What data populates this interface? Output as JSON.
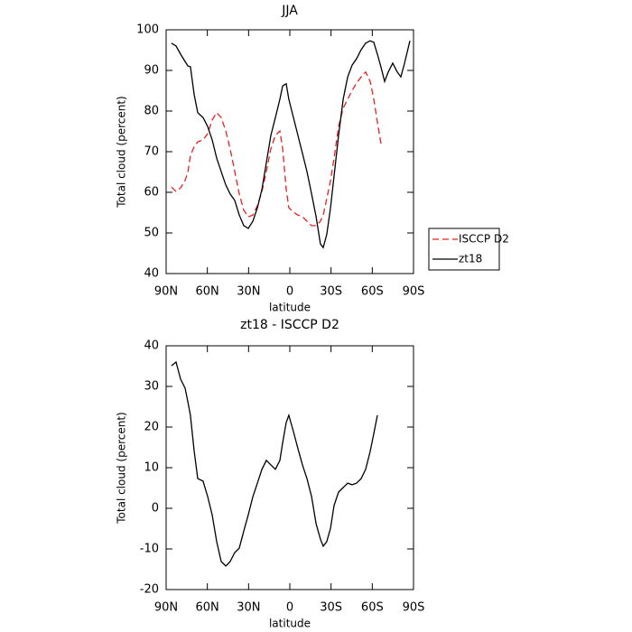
{
  "chart_data": [
    {
      "type": "line",
      "title": "JJA",
      "x_label": "latitude",
      "y_label": "Total cloud (percent)",
      "x": [
        86.1,
        82.8,
        79.5,
        76.2,
        74.2,
        72.3,
        69.6,
        67.0,
        63.1,
        59.8,
        56.5,
        53.2,
        49.9,
        46.6,
        43.4,
        40.1,
        36.8,
        33.5,
        30.2,
        26.9,
        23.6,
        20.3,
        17.1,
        13.8,
        10.5,
        7.2,
        5.2,
        2.6,
        0.7,
        -2.6,
        -5.9,
        -9.2,
        -12.5,
        -15.8,
        -19.1,
        -22.3,
        -24.3,
        -26.9,
        -29.6,
        -32.2,
        -35.5,
        -38.8,
        -42.1,
        -45.3,
        -48.6,
        -51.9,
        -55.2,
        -58.5,
        -61.1,
        -63.7,
        -66.4,
        -69.0,
        -71.6,
        -74.9,
        -78.2,
        -80.8,
        -83.5,
        -87.4
      ],
      "series": [
        {
          "name": "ISCCP D2",
          "color": "#e8201e",
          "dashed": true,
          "values": [
            61.3,
            60.2,
            61.1,
            62.9,
            65,
            69,
            71.3,
            72.4,
            72.9,
            74.4,
            77.8,
            79.6,
            78.4,
            75.1,
            70.7,
            65.1,
            59.6,
            55.6,
            54,
            54.4,
            56.7,
            60.2,
            65.1,
            70.7,
            74,
            75.1,
            70.7,
            60.7,
            56.2,
            55.1,
            54.4,
            54,
            52.9,
            51.8,
            51.8,
            52.9,
            54.4,
            58.4,
            62.9,
            68.4,
            76.2,
            80.7,
            82.9,
            85.1,
            86.9,
            88.4,
            89.6,
            87.3,
            82.9,
            77.3,
            71.8,
            null,
            null,
            null,
            null,
            null,
            null,
            null
          ]
        },
        {
          "name": "zt18",
          "color": "#000000",
          "dashed": false,
          "values": [
            96.7,
            96,
            94,
            92.2,
            91.1,
            90.9,
            84,
            79.6,
            78.4,
            76.2,
            72.9,
            68.4,
            65.1,
            61.8,
            59.6,
            58,
            54.4,
            51.8,
            51.1,
            52.9,
            56.2,
            60.7,
            67.3,
            74,
            78.4,
            82.9,
            86.2,
            86.7,
            82.9,
            78.4,
            74,
            69.6,
            65.1,
            59.6,
            54,
            47.3,
            46.4,
            49.6,
            56.2,
            64,
            74,
            82.9,
            88.4,
            91.3,
            92.9,
            95.1,
            96.7,
            97.3,
            96.9,
            94,
            90.7,
            87.3,
            89.6,
            91.8,
            89.6,
            88.4,
            91.8,
            97.3
          ]
        }
      ],
      "xlim": [
        90,
        -90
      ],
      "xticks": [
        {
          "value": 90,
          "label": "90N"
        },
        {
          "value": 60,
          "label": "60N"
        },
        {
          "value": 30,
          "label": "30N"
        },
        0,
        {
          "value": -30,
          "label": "30S"
        },
        {
          "value": -60,
          "label": "60S"
        },
        {
          "value": -90,
          "label": "90S"
        }
      ],
      "ylim": [
        40,
        100
      ],
      "yticks": [
        40,
        50,
        60,
        70,
        80,
        90,
        100
      ],
      "legend": "right"
    },
    {
      "type": "line",
      "title": "zt18 - ISCCP D2",
      "x_label": "latitude",
      "y_label": "Total cloud (percent)",
      "x": [
        86.1,
        82.8,
        79.5,
        76.2,
        74.2,
        72.3,
        69.6,
        67.0,
        63.1,
        59.8,
        56.5,
        53.2,
        49.9,
        46.6,
        43.4,
        40.1,
        36.8,
        33.5,
        30.2,
        26.9,
        23.6,
        20.3,
        17.1,
        13.8,
        10.5,
        7.2,
        5.2,
        2.6,
        0.7,
        -2.6,
        -5.9,
        -9.2,
        -12.5,
        -15.8,
        -19.1,
        -22.3,
        -24.3,
        -26.9,
        -29.6,
        -32.2,
        -35.5,
        -38.8,
        -42.1,
        -45.3,
        -48.6,
        -51.9,
        -55.2,
        -58.5,
        -61.1,
        -63.7,
        -66.4,
        -69.0,
        -71.6,
        -74.9,
        -78.2,
        -80.8,
        -83.5,
        -87.4
      ],
      "series": [
        {
          "color": "#000000",
          "dashed": false,
          "values": [
            35.1,
            36,
            31.8,
            29.6,
            26.2,
            22.9,
            14,
            7.3,
            6.7,
            2.9,
            -1.6,
            -8.2,
            -13.1,
            -14.2,
            -13.1,
            -10.9,
            -9.8,
            -5.6,
            -1.6,
            2.9,
            6.2,
            9.6,
            11.8,
            10.7,
            9.6,
            11.8,
            16.2,
            21.1,
            22.9,
            18.9,
            14.7,
            10.7,
            7.3,
            2.9,
            -3.8,
            -7.6,
            -9.3,
            -8.2,
            -4.9,
            0.7,
            4,
            5.1,
            6.2,
            5.8,
            6.2,
            7.3,
            9.6,
            14,
            18.4,
            22.9,
            null,
            null,
            null,
            null,
            null,
            null,
            null,
            null
          ]
        }
      ],
      "xlim": [
        90,
        -90
      ],
      "xticks": [
        {
          "value": 90,
          "label": "90N"
        },
        {
          "value": 60,
          "label": "60N"
        },
        {
          "value": 30,
          "label": "30N"
        },
        0,
        {
          "value": -30,
          "label": "30S"
        },
        {
          "value": -60,
          "label": "60S"
        },
        {
          "value": -90,
          "label": "90S"
        }
      ],
      "ylim": [
        -20,
        40
      ],
      "yticks": [
        -20,
        -10,
        0,
        10,
        20,
        30,
        40
      ]
    }
  ]
}
